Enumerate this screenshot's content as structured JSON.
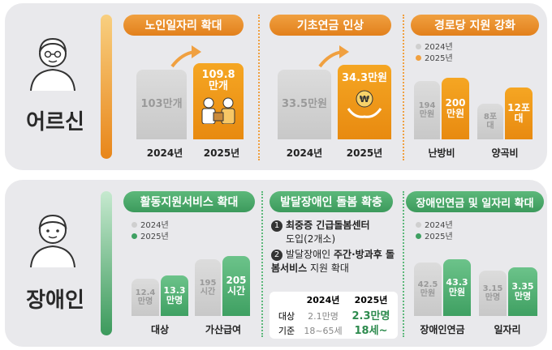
{
  "elderly": {
    "label": "어르신",
    "jobs": {
      "title": "노인일자리 확대",
      "y2024_value": "103만개",
      "y2025_value": "109.8만개",
      "y2024_label": "2024년",
      "y2025_label": "2025년"
    },
    "pension": {
      "title": "기초연금 인상",
      "y2024_value": "33.5만원",
      "y2025_value": "34.3만원",
      "y2024_label": "2024년",
      "y2025_label": "2025년"
    },
    "senior_center": {
      "title": "경로당 지원 강화",
      "legend_2024": "2024년",
      "legend_2025": "2025년",
      "heating_2024": "194만원",
      "heating_2025": "200만원",
      "grain_2024": "8포대",
      "grain_2025": "12포대",
      "heating_label": "난방비",
      "grain_label": "양곡비"
    }
  },
  "disabled": {
    "label": "장애인",
    "activity": {
      "title": "활동지원서비스 확대",
      "legend_2024": "2024년",
      "legend_2025": "2025년",
      "target_2024": "12.4만명",
      "target_2025": "13.3만명",
      "hours_2024": "195시간",
      "hours_2025": "205시간",
      "target_label": "대상",
      "hours_label": "가산급여"
    },
    "developmental": {
      "title": "발달장애인 돌봄 확충",
      "item1_bold": "최중증 긴급돌봄센터",
      "item1_rest": "도입(2개소)",
      "item2_pre": "발달장애인 ",
      "item2_bold": "주간·방과후 돌봄서비스",
      "item2_rest": " 지원 확대",
      "col_2024": "2024년",
      "col_2025": "2025년",
      "row1_label": "대상",
      "row1_2024": "2.1만명",
      "row1_2025": "2.3만명",
      "row2_label": "기준",
      "row2_2024": "18~65세",
      "row2_2025": "18세~"
    },
    "pension_jobs": {
      "title": "장애인연금 및 일자리 확대",
      "legend_2024": "2024년",
      "legend_2025": "2025년",
      "pension_2024": "42.5만원",
      "pension_2025": "43.3만원",
      "jobs_2024": "3.15만명",
      "jobs_2025": "3.35만명",
      "pension_label": "장애인연금",
      "jobs_label": "일자리"
    }
  },
  "colors": {
    "orange": "#f0a040",
    "green": "#5cb87a",
    "gray": "#d0d0d0"
  }
}
